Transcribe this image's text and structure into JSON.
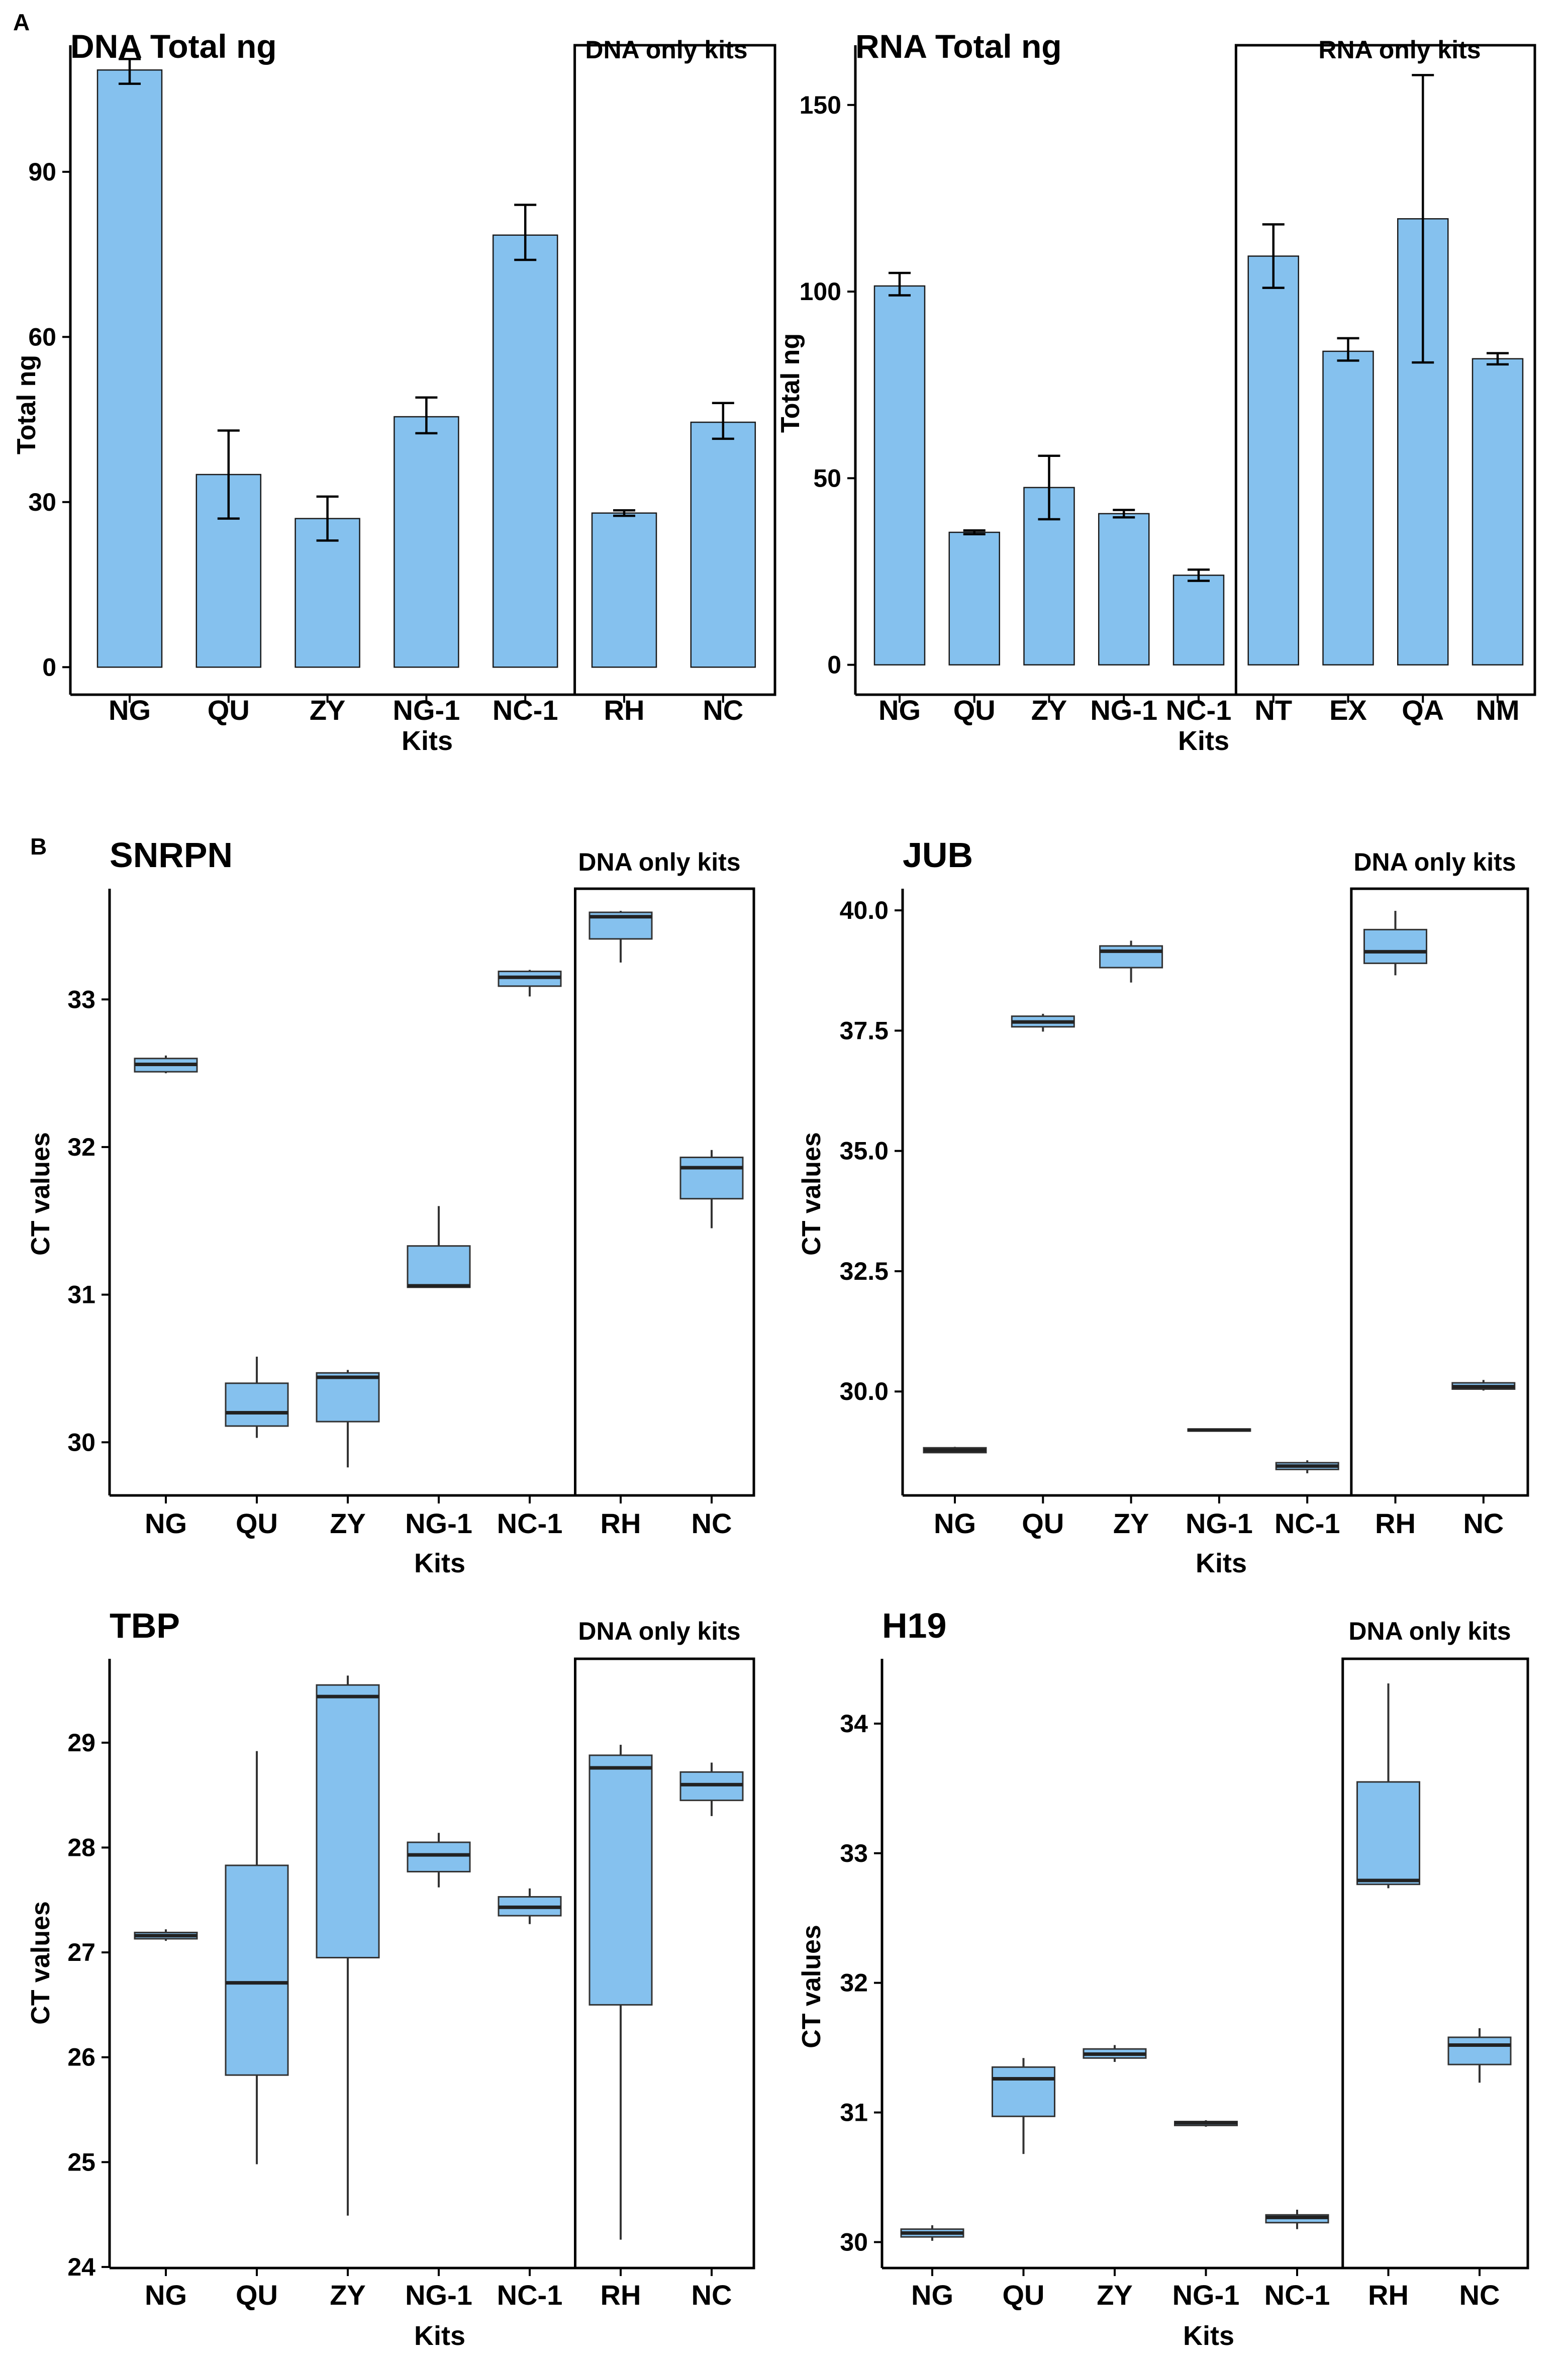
{
  "panel_labels": {
    "a": "A",
    "b": "B"
  },
  "colors": {
    "bar_fill": "#85C1EE",
    "bar_stroke": "#1a1a1a",
    "axis": "#000000"
  },
  "chart_data": [
    {
      "id": "dna-total",
      "type": "bar",
      "title": "DNA Total ng",
      "xlabel": "Kits",
      "ylabel": "Total ng",
      "categories": [
        "NG",
        "QU",
        "ZY",
        "NG-1",
        "NC-1",
        "RH",
        "NC"
      ],
      "values": [
        108.5,
        35,
        27,
        45.5,
        78.5,
        28,
        44.5
      ],
      "error_low": [
        106,
        27,
        23,
        42.5,
        74,
        27.5,
        41.5
      ],
      "error_high": [
        110.5,
        43,
        31,
        49,
        84,
        28.5,
        48
      ],
      "yticks": [
        0,
        30,
        60,
        90
      ],
      "ylim": [
        -5,
        113
      ],
      "highlight_label": "DNA only kits",
      "highlight_start": 5
    },
    {
      "id": "rna-total",
      "type": "bar",
      "title": "RNA Total ng",
      "xlabel": "Kits",
      "ylabel": "Total ng",
      "categories": [
        "NG",
        "QU",
        "ZY",
        "NG-1",
        "NC-1",
        "NT",
        "EX",
        "QA",
        "NM"
      ],
      "values": [
        101.5,
        35.5,
        47.5,
        40.5,
        24,
        109.5,
        84,
        119.5,
        82
      ],
      "error_low": [
        99,
        35,
        39,
        39.5,
        22.5,
        101,
        81.5,
        81,
        80.5
      ],
      "error_high": [
        105,
        36,
        56,
        41.5,
        25.5,
        118,
        87.5,
        158,
        83.5
      ],
      "yticks": [
        0,
        50,
        100,
        150
      ],
      "ylim": [
        -8,
        166
      ],
      "highlight_label": "RNA only kits",
      "highlight_start": 5
    },
    {
      "id": "snrpn",
      "type": "box",
      "title": "SNRPN",
      "xlabel": "Kits",
      "ylabel": "CT values",
      "categories": [
        "NG",
        "QU",
        "ZY",
        "NG-1",
        "NC-1",
        "RH",
        "NC"
      ],
      "boxes": [
        {
          "min": 32.5,
          "q1": 32.51,
          "median": 32.56,
          "q3": 32.6,
          "max": 32.62
        },
        {
          "min": 30.03,
          "q1": 30.11,
          "median": 30.2,
          "q3": 30.4,
          "max": 30.58
        },
        {
          "min": 29.83,
          "q1": 30.14,
          "median": 30.44,
          "q3": 30.47,
          "max": 30.49
        },
        {
          "min": 31.05,
          "q1": 31.05,
          "median": 31.06,
          "q3": 31.33,
          "max": 31.6
        },
        {
          "min": 33.02,
          "q1": 33.09,
          "median": 33.15,
          "q3": 33.19,
          "max": 33.2
        },
        {
          "min": 33.25,
          "q1": 33.41,
          "median": 33.56,
          "q3": 33.59,
          "max": 33.6
        },
        {
          "min": 31.45,
          "q1": 31.65,
          "median": 31.86,
          "q3": 31.93,
          "max": 31.98
        }
      ],
      "yticks": [
        30,
        31,
        32,
        33
      ],
      "ylim": [
        29.64,
        33.75
      ],
      "highlight_label": "DNA only kits",
      "highlight_start": 5
    },
    {
      "id": "jub",
      "type": "box",
      "title": "JUB",
      "xlabel": "Kits",
      "ylabel": "CT values",
      "categories": [
        "NG",
        "QU",
        "ZY",
        "NG-1",
        "NC-1",
        "RH",
        "NC"
      ],
      "boxes": [
        {
          "min": 28.72,
          "q1": 28.73,
          "median": 28.78,
          "q3": 28.83,
          "max": 28.85
        },
        {
          "min": 37.48,
          "q1": 37.58,
          "median": 37.68,
          "q3": 37.8,
          "max": 37.85
        },
        {
          "min": 38.5,
          "q1": 38.81,
          "median": 39.15,
          "q3": 39.26,
          "max": 39.37
        },
        {
          "min": 29.18,
          "q1": 29.19,
          "median": 29.2,
          "q3": 29.22,
          "max": 29.23
        },
        {
          "min": 28.3,
          "q1": 28.38,
          "median": 28.45,
          "q3": 28.52,
          "max": 28.57
        },
        {
          "min": 38.65,
          "q1": 38.9,
          "median": 39.14,
          "q3": 39.6,
          "max": 39.99
        },
        {
          "min": 30.02,
          "q1": 30.05,
          "median": 30.1,
          "q3": 30.18,
          "max": 30.24
        }
      ],
      "yticks": [
        30,
        32.5,
        35,
        37.5,
        40
      ],
      "yticklabels": [
        "30.0",
        "32.5",
        "35.0",
        "37.5",
        "40.0"
      ],
      "ylim": [
        27.84,
        40.45
      ],
      "highlight_label": "DNA only kits",
      "highlight_start": 5
    },
    {
      "id": "tbp",
      "type": "box",
      "title": "TBP",
      "xlabel": "Kits",
      "ylabel": "CT values",
      "categories": [
        "NG",
        "QU",
        "ZY",
        "NG-1",
        "NC-1",
        "RH",
        "NC"
      ],
      "boxes": [
        {
          "min": 27.11,
          "q1": 27.13,
          "median": 27.16,
          "q3": 27.19,
          "max": 27.22
        },
        {
          "min": 24.98,
          "q1": 25.83,
          "median": 26.71,
          "q3": 27.83,
          "max": 28.92
        },
        {
          "min": 24.49,
          "q1": 26.95,
          "median": 29.44,
          "q3": 29.55,
          "max": 29.64
        },
        {
          "min": 27.62,
          "q1": 27.77,
          "median": 27.93,
          "q3": 28.05,
          "max": 28.14
        },
        {
          "min": 27.27,
          "q1": 27.35,
          "median": 27.43,
          "q3": 27.53,
          "max": 27.61
        },
        {
          "min": 24.26,
          "q1": 26.5,
          "median": 28.76,
          "q3": 28.88,
          "max": 28.98
        },
        {
          "min": 28.3,
          "q1": 28.45,
          "median": 28.6,
          "q3": 28.72,
          "max": 28.81
        }
      ],
      "yticks": [
        24,
        25,
        26,
        27,
        28,
        29
      ],
      "ylim": [
        23.99,
        29.8
      ],
      "highlight_label": "DNA only kits",
      "highlight_start": 5
    },
    {
      "id": "h19",
      "type": "box",
      "title": "H19",
      "xlabel": "Kits",
      "ylabel": "CT values",
      "categories": [
        "NG",
        "QU",
        "ZY",
        "NG-1",
        "NC-1",
        "RH",
        "NC"
      ],
      "boxes": [
        {
          "min": 30.01,
          "q1": 30.04,
          "median": 30.07,
          "q3": 30.1,
          "max": 30.13
        },
        {
          "min": 30.68,
          "q1": 30.97,
          "median": 31.26,
          "q3": 31.35,
          "max": 31.42
        },
        {
          "min": 31.39,
          "q1": 31.42,
          "median": 31.45,
          "q3": 31.49,
          "max": 31.52
        },
        {
          "min": 30.89,
          "q1": 30.9,
          "median": 30.92,
          "q3": 30.93,
          "max": 30.94
        },
        {
          "min": 30.1,
          "q1": 30.15,
          "median": 30.19,
          "q3": 30.21,
          "max": 30.25
        },
        {
          "min": 32.73,
          "q1": 32.76,
          "median": 32.79,
          "q3": 33.55,
          "max": 34.31
        },
        {
          "min": 31.23,
          "q1": 31.37,
          "median": 31.52,
          "q3": 31.58,
          "max": 31.65
        }
      ],
      "yticks": [
        30,
        31,
        32,
        33,
        34
      ],
      "ylim": [
        29.8,
        34.5
      ],
      "highlight_label": "DNA only kits",
      "highlight_start": 5
    }
  ]
}
